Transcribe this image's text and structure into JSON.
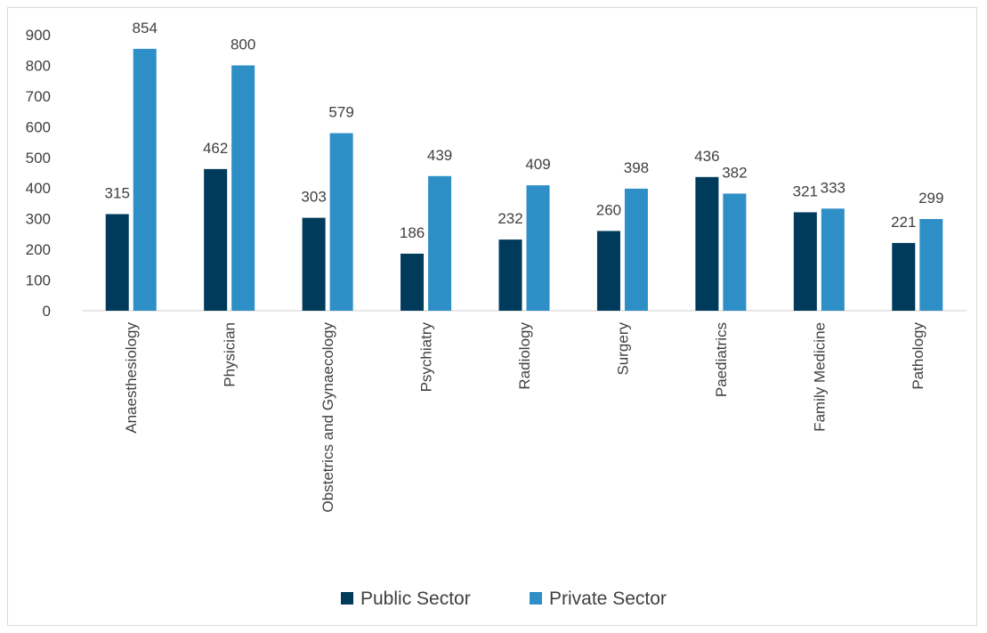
{
  "chart_data": {
    "type": "bar",
    "categories": [
      "Anaesthesiology",
      "Physician",
      "Obstetrics and Gynaecology",
      "Psychiatry",
      "Radiology",
      "Surgery",
      "Paediatrics",
      "Family Medicine",
      "Pathology"
    ],
    "series": [
      {
        "name": "Public Sector",
        "values": [
          315,
          462,
          303,
          186,
          232,
          260,
          436,
          321,
          221
        ],
        "color": "#003b5c"
      },
      {
        "name": "Private Sector",
        "values": [
          854,
          800,
          579,
          439,
          409,
          398,
          382,
          333,
          299
        ],
        "color": "#2e8fc7"
      }
    ],
    "ylim": [
      0,
      900
    ],
    "yticks": [
      0,
      100,
      200,
      300,
      400,
      500,
      600,
      700,
      800,
      900
    ],
    "grid": false,
    "legend": "bottom-center",
    "title": "",
    "xlabel": "",
    "ylabel": ""
  }
}
